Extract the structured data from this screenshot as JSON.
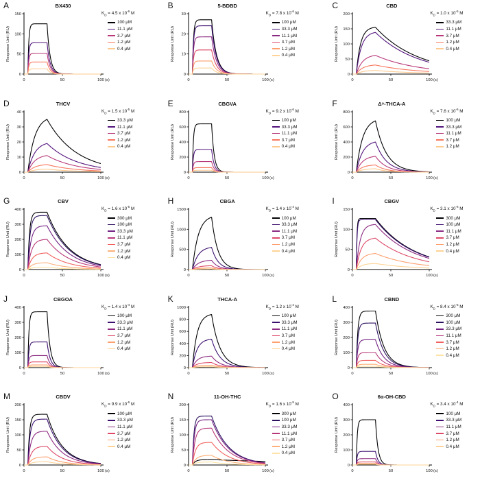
{
  "figure": {
    "y_label": "Response Unit (RU)",
    "x_unit": "(s)",
    "x_ticks": [
      0,
      50,
      100
    ],
    "x_lim": [
      0,
      100
    ],
    "injection": {
      "t_on": 5,
      "t_off": 30
    },
    "kd_symbol": "K",
    "kd_sub": "D",
    "kd_eq": " = ",
    "kd_x10": " x 10",
    "kd_unit": " M"
  },
  "chart_data": [
    {
      "panel": "A",
      "title": "BX430",
      "type": "line",
      "kd": {
        "coeff": "4.5",
        "exp": "-6"
      },
      "ylim": [
        0,
        150
      ],
      "yticks": [
        0,
        50,
        100,
        150
      ],
      "series": [
        {
          "name": "100 μM",
          "color": "#000004",
          "peak_ru": 125,
          "ka": 0.8,
          "koff": 0.25
        },
        {
          "name": "11.1 μM",
          "color": "#51127c",
          "peak_ru": 78,
          "ka": 0.8,
          "koff": 0.25
        },
        {
          "name": "3.7 μM",
          "color": "#b73779",
          "peak_ru": 52,
          "ka": 0.8,
          "koff": 0.25
        },
        {
          "name": "1.2 μM",
          "color": "#f8765c",
          "peak_ru": 30,
          "ka": 0.8,
          "koff": 0.25
        },
        {
          "name": "0.4 μM",
          "color": "#fec98d",
          "peak_ru": 13,
          "ka": 0.8,
          "koff": 0.25
        }
      ]
    },
    {
      "panel": "B",
      "title": "5-BDBD",
      "type": "line",
      "kd": {
        "coeff": "7.8",
        "exp": "-6"
      },
      "ylim": [
        0,
        30
      ],
      "yticks": [
        0,
        10,
        20,
        30
      ],
      "series": [
        {
          "name": "100 μM",
          "color": "#000004",
          "peak_ru": 27,
          "ka": 0.7,
          "koff": 0.16
        },
        {
          "name": "33.3 μM",
          "color": "#3b0f70",
          "peak_ru": 24,
          "ka": 0.7,
          "koff": 0.16
        },
        {
          "name": "11.1 μM",
          "color": "#8c2981",
          "peak_ru": 18.5,
          "ka": 0.7,
          "koff": 0.16
        },
        {
          "name": "3.7 μM",
          "color": "#de4968",
          "peak_ru": 12,
          "ka": 0.7,
          "koff": 0.16
        },
        {
          "name": "1.2 μM",
          "color": "#fe9f6d",
          "peak_ru": 6.5,
          "ka": 0.7,
          "koff": 0.16
        },
        {
          "name": "0.4 μM",
          "color": "#fed395",
          "peak_ru": 3,
          "ka": 0.7,
          "koff": 0.16
        }
      ]
    },
    {
      "panel": "C",
      "title": "CBD",
      "type": "line",
      "kd": {
        "coeff": "1.0",
        "exp": "-5"
      },
      "ylim": [
        0,
        200
      ],
      "yticks": [
        0,
        50,
        100,
        150,
        200
      ],
      "series": [
        {
          "name": "33.3 μM",
          "color": "#000004",
          "peak_ru": 155,
          "ka": 0.18,
          "koff": 0.018
        },
        {
          "name": "11.1 μM",
          "color": "#51127c",
          "peak_ru": 138,
          "ka": 0.15,
          "koff": 0.018
        },
        {
          "name": "3.7 μM",
          "color": "#b73779",
          "peak_ru": 62,
          "ka": 0.12,
          "koff": 0.018
        },
        {
          "name": "1.2 μM",
          "color": "#f8765c",
          "peak_ru": 30,
          "ka": 0.12,
          "koff": 0.018
        },
        {
          "name": "0.4 μM",
          "color": "#fec98d",
          "peak_ru": 12,
          "ka": 0.12,
          "koff": 0.018
        }
      ]
    },
    {
      "panel": "D",
      "title": "THCV",
      "type": "line",
      "kd": {
        "coeff": "1.5",
        "exp": "-5"
      },
      "ylim": [
        0,
        40
      ],
      "yticks": [
        0,
        10,
        20,
        30,
        40
      ],
      "series": [
        {
          "name": "33.3 μM",
          "color": "#000004",
          "peak_ru": 35,
          "ka": 0.11,
          "koff": 0.026
        },
        {
          "name": "11.1 μM",
          "color": "#51127c",
          "peak_ru": 19,
          "ka": 0.11,
          "koff": 0.026
        },
        {
          "name": "3.7 μM",
          "color": "#b73779",
          "peak_ru": 11,
          "ka": 0.11,
          "koff": 0.026
        },
        {
          "name": "1.2 μM",
          "color": "#f8765c",
          "peak_ru": 5,
          "ka": 0.11,
          "koff": 0.026
        },
        {
          "name": "0.4 μM",
          "color": "#fec98d",
          "peak_ru": 2,
          "ka": 0.11,
          "koff": 0.026
        }
      ]
    },
    {
      "panel": "E",
      "title": "CBGVA",
      "type": "line",
      "kd": {
        "coeff": "9.2",
        "exp": "-6"
      },
      "ylim": [
        0,
        800
      ],
      "yticks": [
        0,
        200,
        400,
        600,
        800
      ],
      "series": [
        {
          "name": "100 μM",
          "color": "#000004",
          "peak_ru": 640,
          "ka": 0.8,
          "koff": 0.3
        },
        {
          "name": "33.3 μM",
          "color": "#51127c",
          "peak_ru": 300,
          "ka": 0.8,
          "koff": 0.3
        },
        {
          "name": "11.1 μM",
          "color": "#b73779",
          "peak_ru": 140,
          "ka": 0.8,
          "koff": 0.3
        },
        {
          "name": "3.7 μM",
          "color": "#f8765c",
          "peak_ru": 60,
          "ka": 0.8,
          "koff": 0.3
        },
        {
          "name": "0.4 μM",
          "color": "#fec98d",
          "peak_ru": 25,
          "ka": 0.8,
          "koff": 0.3
        }
      ]
    },
    {
      "panel": "F",
      "title": "Δ⁹-THCA-A",
      "type": "line",
      "kd": {
        "coeff": "7.6",
        "exp": "-6"
      },
      "ylim": [
        0,
        800
      ],
      "yticks": [
        0,
        200,
        400,
        600,
        800
      ],
      "series": [
        {
          "name": "100 μM",
          "color": "#000004",
          "peak_ru": 680,
          "ka": 0.12,
          "koff": 0.07
        },
        {
          "name": "33.3 μM",
          "color": "#51127c",
          "peak_ru": 400,
          "ka": 0.12,
          "koff": 0.07
        },
        {
          "name": "11.1 μM",
          "color": "#b73779",
          "peak_ru": 210,
          "ka": 0.12,
          "koff": 0.07
        },
        {
          "name": "3.7 μM",
          "color": "#f8765c",
          "peak_ru": 95,
          "ka": 0.12,
          "koff": 0.07
        },
        {
          "name": "1.2 μM",
          "color": "#fec98d",
          "peak_ru": 45,
          "ka": 0.12,
          "koff": 0.07
        }
      ]
    },
    {
      "panel": "G",
      "title": "CBV",
      "type": "line",
      "kd": {
        "coeff": "1.6",
        "exp": "-5"
      },
      "ylim": [
        0,
        400
      ],
      "yticks": [
        0,
        100,
        200,
        300,
        400
      ],
      "series": [
        {
          "name": "300 μM",
          "color": "#000004",
          "peak_ru": 380,
          "ka": 0.45,
          "koff": 0.035
        },
        {
          "name": "100 μM",
          "color": "#2c115f",
          "peak_ru": 358,
          "ka": 0.35,
          "koff": 0.035
        },
        {
          "name": "33.3 μM",
          "color": "#721f81",
          "peak_ru": 290,
          "ka": 0.25,
          "koff": 0.035
        },
        {
          "name": "11.1 μM",
          "color": "#b73779",
          "peak_ru": 200,
          "ka": 0.2,
          "koff": 0.035
        },
        {
          "name": "3.7 μM",
          "color": "#f1605d",
          "peak_ru": 110,
          "ka": 0.18,
          "koff": 0.035
        },
        {
          "name": "1.2 μM",
          "color": "#feb078",
          "peak_ru": 45,
          "ka": 0.18,
          "koff": 0.035
        },
        {
          "name": "0.4 μM",
          "color": "#fde2a3",
          "peak_ru": 15,
          "ka": 0.18,
          "koff": 0.035
        }
      ]
    },
    {
      "panel": "H",
      "title": "CBGA",
      "type": "line",
      "kd": {
        "coeff": "1.4",
        "exp": "-4"
      },
      "ylim": [
        0,
        1500
      ],
      "yticks": [
        0,
        500,
        1000,
        1500
      ],
      "series": [
        {
          "name": "100 μM",
          "color": "#000004",
          "peak_ru": 1300,
          "ka": 0.13,
          "koff": 0.12
        },
        {
          "name": "33.3 μM",
          "color": "#3b0f70",
          "peak_ru": 550,
          "ka": 0.13,
          "koff": 0.12
        },
        {
          "name": "11.1 μM",
          "color": "#8c2981",
          "peak_ru": 230,
          "ka": 0.13,
          "koff": 0.12
        },
        {
          "name": "3.7 μM",
          "color": "#de4968",
          "peak_ru": 95,
          "ka": 0.13,
          "koff": 0.12
        },
        {
          "name": "1.2 μM",
          "color": "#fe9f6d",
          "peak_ru": 40,
          "ka": 0.13,
          "koff": 0.12
        },
        {
          "name": "0.4 μM",
          "color": "#fed395",
          "peak_ru": 15,
          "ka": 0.13,
          "koff": 0.12
        }
      ]
    },
    {
      "panel": "I",
      "title": "CBGV",
      "type": "line",
      "kd": {
        "coeff": "3.1",
        "exp": "-6"
      },
      "ylim": [
        0,
        150
      ],
      "yticks": [
        0,
        50,
        100,
        150
      ],
      "series": [
        {
          "name": "300 μM",
          "color": "#000004",
          "peak_ru": 127,
          "ka": 1.2,
          "koff": 0.02
        },
        {
          "name": "100 μM",
          "color": "#3b0f70",
          "peak_ru": 124,
          "ka": 1.0,
          "koff": 0.02
        },
        {
          "name": "11.1 μM",
          "color": "#8c2981",
          "peak_ru": 112,
          "ka": 0.2,
          "koff": 0.02
        },
        {
          "name": "3.7 μM",
          "color": "#de4968",
          "peak_ru": 78,
          "ka": 0.16,
          "koff": 0.02
        },
        {
          "name": "1.2 μM",
          "color": "#fe9f6d",
          "peak_ru": 40,
          "ka": 0.14,
          "koff": 0.02
        },
        {
          "name": "0.4 μM",
          "color": "#fed395",
          "peak_ru": 15,
          "ka": 0.14,
          "koff": 0.02
        }
      ]
    },
    {
      "panel": "J",
      "title": "CBGOA",
      "type": "line",
      "kd": {
        "coeff": "1.4",
        "exp": "-4"
      },
      "ylim": [
        0,
        400
      ],
      "yticks": [
        0,
        100,
        200,
        300,
        400
      ],
      "series": [
        {
          "name": "100 μM",
          "color": "#000004",
          "peak_ru": 370,
          "ka": 0.7,
          "koff": 0.25
        },
        {
          "name": "33.3 μM",
          "color": "#3b0f70",
          "peak_ru": 170,
          "ka": 0.7,
          "koff": 0.25
        },
        {
          "name": "11.1 μM",
          "color": "#8c2981",
          "peak_ru": 80,
          "ka": 0.7,
          "koff": 0.25
        },
        {
          "name": "3.7 μM",
          "color": "#de4968",
          "peak_ru": 38,
          "ka": 0.7,
          "koff": 0.25
        },
        {
          "name": "1.2 μM",
          "color": "#fe9f6d",
          "peak_ru": 18,
          "ka": 0.7,
          "koff": 0.25
        },
        {
          "name": "0.4 μM",
          "color": "#fed395",
          "peak_ru": 8,
          "ka": 0.7,
          "koff": 0.25
        }
      ]
    },
    {
      "panel": "K",
      "title": "THCA-A",
      "type": "line",
      "kd": {
        "coeff": "1.2",
        "exp": "-4"
      },
      "ylim": [
        0,
        1000
      ],
      "yticks": [
        0,
        200,
        400,
        600,
        800,
        1000
      ],
      "series": [
        {
          "name": "100 μM",
          "color": "#000004",
          "peak_ru": 880,
          "ka": 0.16,
          "koff": 0.09
        },
        {
          "name": "33.3 μM",
          "color": "#3b0f70",
          "peak_ru": 470,
          "ka": 0.16,
          "koff": 0.09
        },
        {
          "name": "11.1 μM",
          "color": "#8c2981",
          "peak_ru": 190,
          "ka": 0.16,
          "koff": 0.09
        },
        {
          "name": "3.7 μM",
          "color": "#de4968",
          "peak_ru": 85,
          "ka": 0.16,
          "koff": 0.09
        },
        {
          "name": "1.2 μM",
          "color": "#fe9f6d",
          "peak_ru": 38,
          "ka": 0.16,
          "koff": 0.09
        },
        {
          "name": "0.4 μM",
          "color": "#fed395",
          "peak_ru": 15,
          "ka": 0.16,
          "koff": 0.09
        }
      ]
    },
    {
      "panel": "L",
      "title": "CBND",
      "type": "line",
      "kd": {
        "coeff": "8.4",
        "exp": "-6"
      },
      "ylim": [
        0,
        400
      ],
      "yticks": [
        0,
        100,
        200,
        300,
        400
      ],
      "series": [
        {
          "name": "300 μM",
          "color": "#000004",
          "peak_ru": 375,
          "ka": 0.5,
          "koff": 0.09
        },
        {
          "name": "100 μM",
          "color": "#2c115f",
          "peak_ru": 295,
          "ka": 0.5,
          "koff": 0.09
        },
        {
          "name": "33.3 μM",
          "color": "#721f81",
          "peak_ru": 185,
          "ka": 0.5,
          "koff": 0.09
        },
        {
          "name": "11.1 μM",
          "color": "#b73779",
          "peak_ru": 100,
          "ka": 0.5,
          "koff": 0.09
        },
        {
          "name": "3.7 μM",
          "color": "#f1605d",
          "peak_ru": 48,
          "ka": 0.5,
          "koff": 0.09
        },
        {
          "name": "1.2 μM",
          "color": "#feb078",
          "peak_ru": 22,
          "ka": 0.5,
          "koff": 0.09
        },
        {
          "name": "0.4 μM",
          "color": "#fde2a3",
          "peak_ru": 9,
          "ka": 0.5,
          "koff": 0.09
        }
      ]
    },
    {
      "panel": "M",
      "title": "CBDV",
      "type": "line",
      "kd": {
        "coeff": "9.9",
        "exp": "-6"
      },
      "ylim": [
        0,
        200
      ],
      "yticks": [
        0,
        50,
        100,
        150,
        200
      ],
      "series": [
        {
          "name": "100 μM",
          "color": "#000004",
          "peak_ru": 168,
          "ka": 0.45,
          "koff": 0.05
        },
        {
          "name": "33.3 μM",
          "color": "#3b0f70",
          "peak_ru": 152,
          "ka": 0.35,
          "koff": 0.05
        },
        {
          "name": "11.1 μM",
          "color": "#8c2981",
          "peak_ru": 112,
          "ka": 0.25,
          "koff": 0.05
        },
        {
          "name": "3.7 μM",
          "color": "#de4968",
          "peak_ru": 62,
          "ka": 0.2,
          "koff": 0.05
        },
        {
          "name": "1.2 μM",
          "color": "#fe9f6d",
          "peak_ru": 27,
          "ka": 0.18,
          "koff": 0.05
        },
        {
          "name": "0.4 μM",
          "color": "#fed395",
          "peak_ru": 11,
          "ka": 0.18,
          "koff": 0.05
        }
      ]
    },
    {
      "panel": "N",
      "title": "11-OH-THC",
      "type": "line",
      "kd": {
        "coeff": "1.6",
        "exp": "-5"
      },
      "ylim": [
        0,
        200
      ],
      "yticks": [
        0,
        50,
        100,
        150,
        200
      ],
      "series": [
        {
          "name": "300 μM",
          "color": "#000004",
          "peak_ru": 18,
          "ka": 0.25,
          "koff": 0.006
        },
        {
          "name": "100 μM",
          "color": "#2c115f",
          "peak_ru": 162,
          "ka": 0.5,
          "koff": 0.045
        },
        {
          "name": "33.3 μM",
          "color": "#721f81",
          "peak_ru": 150,
          "ka": 0.4,
          "koff": 0.045
        },
        {
          "name": "11.1 μM",
          "color": "#b73779",
          "peak_ru": 122,
          "ka": 0.3,
          "koff": 0.045
        },
        {
          "name": "3.7 μM",
          "color": "#f1605d",
          "peak_ru": 75,
          "ka": 0.25,
          "koff": 0.045
        },
        {
          "name": "1.2 μM",
          "color": "#feb078",
          "peak_ru": 32,
          "ka": 0.2,
          "koff": 0.045
        },
        {
          "name": "0.4 μM",
          "color": "#fde2a3",
          "peak_ru": 10,
          "ka": 0.2,
          "koff": 0.045
        }
      ]
    },
    {
      "panel": "O",
      "title": "6α-OH-CBD",
      "type": "line",
      "kd": {
        "coeff": "3.4",
        "exp": "-4"
      },
      "ylim": [
        0,
        400
      ],
      "yticks": [
        0,
        100,
        200,
        300,
        400
      ],
      "series": [
        {
          "name": "100 μM",
          "color": "#000004",
          "peak_ru": 300,
          "ka": 0.8,
          "koff": 0.3
        },
        {
          "name": "33.3 μM",
          "color": "#3b0f70",
          "peak_ru": 90,
          "ka": 0.8,
          "koff": 0.3
        },
        {
          "name": "11.1 μM",
          "color": "#8c2981",
          "peak_ru": 42,
          "ka": 0.8,
          "koff": 0.3
        },
        {
          "name": "3.7 μM",
          "color": "#de4968",
          "peak_ru": 20,
          "ka": 0.8,
          "koff": 0.3
        },
        {
          "name": "1.2 μM",
          "color": "#fe9f6d",
          "peak_ru": 10,
          "ka": 0.8,
          "koff": 0.3
        },
        {
          "name": "0.4 μM",
          "color": "#fed395",
          "peak_ru": 5,
          "ka": 0.8,
          "koff": 0.3
        }
      ]
    }
  ]
}
